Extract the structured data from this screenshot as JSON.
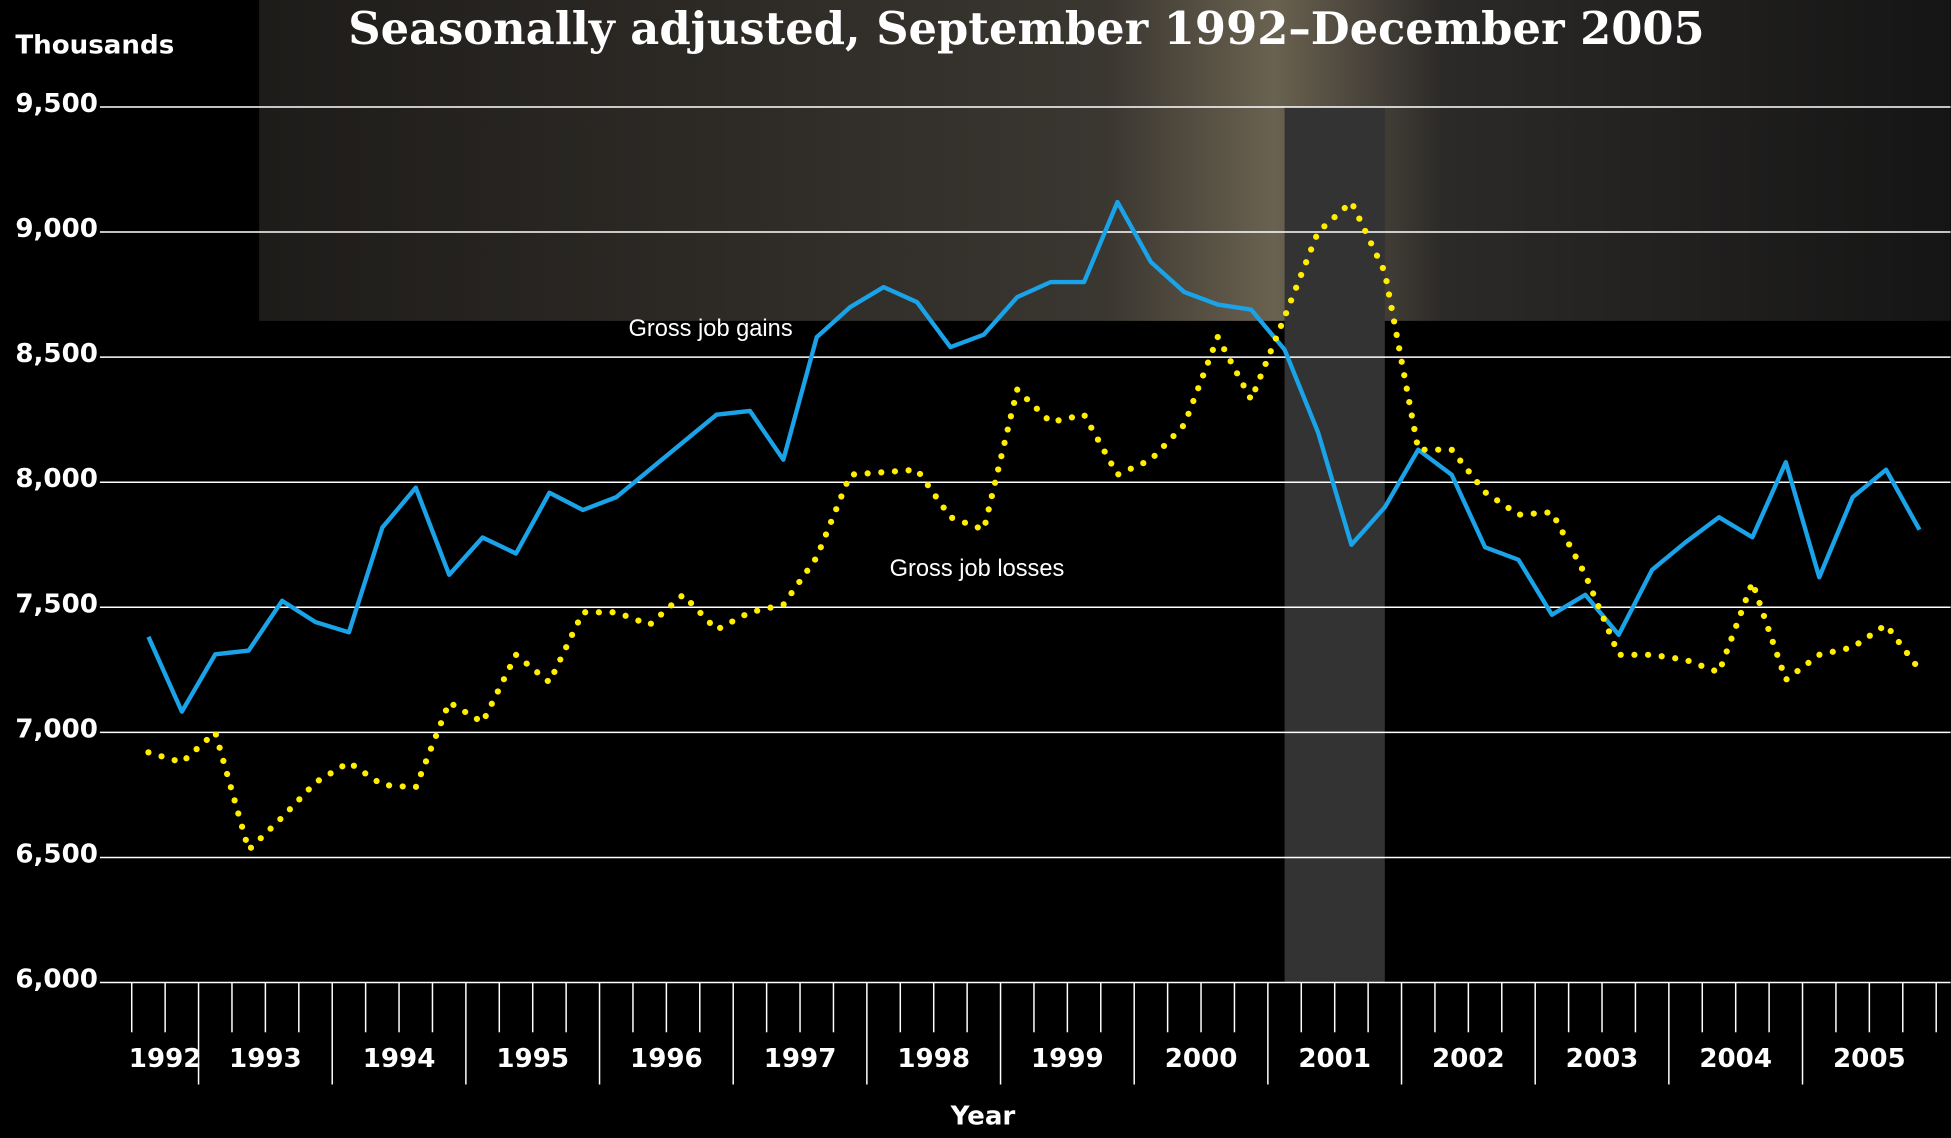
{
  "chart_data": {
    "type": "line",
    "title": "Seasonally adjusted, September 1992–December 2005",
    "y_label": "Thousands",
    "x_label": "Year",
    "categories": [
      "1992",
      "1992",
      "1993",
      "1993",
      "1993",
      "1993",
      "1994",
      "1994",
      "1994",
      "1994",
      "1995",
      "1995",
      "1995",
      "1995",
      "1996",
      "1996",
      "1996",
      "1996",
      "1997",
      "1997",
      "1997",
      "1997",
      "1998",
      "1998",
      "1998",
      "1998",
      "1999",
      "1999",
      "1999",
      "1999",
      "2000",
      "2000",
      "2000",
      "2000",
      "2001",
      "2001",
      "2001",
      "2001",
      "2002",
      "2002",
      "2002",
      "2002",
      "2003",
      "2003",
      "2003",
      "2003",
      "2004",
      "2004",
      "2004",
      "2004",
      "2005",
      "2005",
      "2005",
      "2005"
    ],
    "series": [
      {
        "name": "Gross job gains",
        "color": "#1aa3e8",
        "style": "solid",
        "values": [
          7382,
          7083,
          7312,
          7327,
          7526,
          7441,
          7400,
          7819,
          7978,
          7630,
          7779,
          7715,
          7958,
          7889,
          7940,
          8050,
          8160,
          8270,
          8285,
          8090,
          8580,
          8700,
          8780,
          8720,
          8540,
          8590,
          8740,
          8800,
          8800,
          9120,
          8880,
          8760,
          8710,
          8690,
          8530,
          8200,
          7750,
          7900,
          8130,
          8030,
          7740,
          7690,
          7470,
          7550,
          7390,
          7650,
          7760,
          7860,
          7780,
          8080,
          7620,
          7940,
          8050,
          7810
        ]
      },
      {
        "name": "Gross job losses",
        "color": "#ffee00",
        "style": "dotted",
        "values": [
          6920,
          6880,
          7000,
          6530,
          6660,
          6800,
          6880,
          6790,
          6780,
          7120,
          7040,
          7310,
          7200,
          7480,
          7480,
          7430,
          7550,
          7410,
          7480,
          7510,
          7700,
          8030,
          8040,
          8050,
          7860,
          7810,
          8370,
          8240,
          8270,
          8030,
          8090,
          8230,
          8580,
          8330,
          8660,
          9000,
          9120,
          8840,
          8130,
          8130,
          7960,
          7870,
          7880,
          7630,
          7310,
          7310,
          7290,
          7240,
          7600,
          7210,
          7310,
          7340,
          7430,
          7250
        ]
      }
    ],
    "ylim": [
      6000,
      9500
    ],
    "yticks": [
      {
        "value": 6000,
        "label": "6,000"
      },
      {
        "value": 6500,
        "label": "6,500"
      },
      {
        "value": 7000,
        "label": "7,000"
      },
      {
        "value": 7500,
        "label": "7,500"
      },
      {
        "value": 8000,
        "label": "8,000"
      },
      {
        "value": 8500,
        "label": "8,500"
      },
      {
        "value": 9000,
        "label": "9,000"
      },
      {
        "value": 9500,
        "label": "9,500"
      }
    ],
    "grid": true,
    "shade": [
      34,
      37
    ],
    "shade_color": "#333333"
  }
}
